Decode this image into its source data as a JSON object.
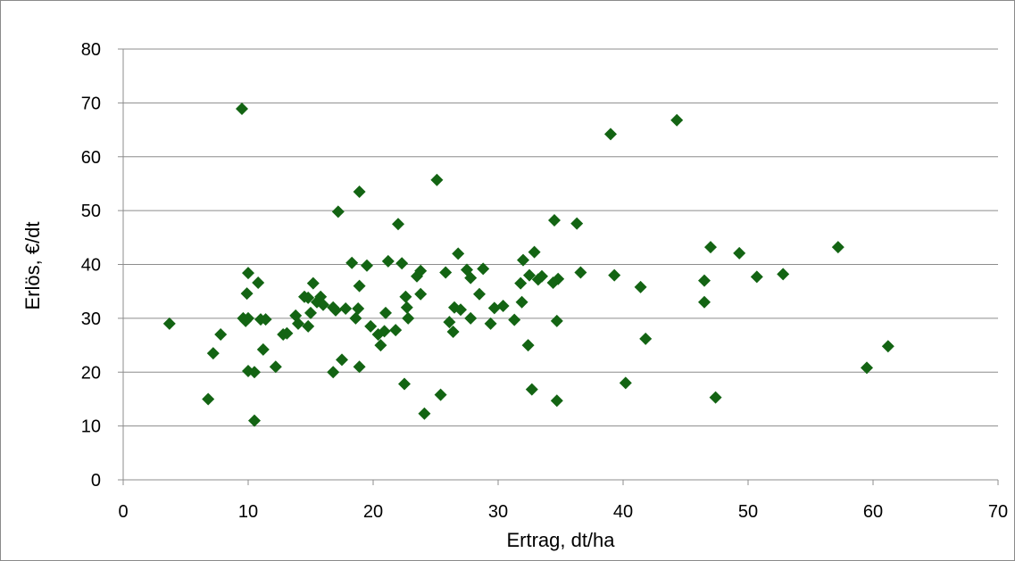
{
  "chart_data": {
    "type": "scatter",
    "title": "",
    "xlabel": "Ertrag, dt/ha",
    "ylabel": "Erlös, €/dt",
    "xlim": [
      0,
      70
    ],
    "ylim": [
      0,
      80
    ],
    "xticks": [
      "0",
      "10",
      "20",
      "30",
      "40",
      "50",
      "60",
      "70"
    ],
    "yticks": [
      "0",
      "10",
      "20",
      "30",
      "40",
      "50",
      "60",
      "70",
      "80"
    ],
    "grid": "horizontal",
    "legend": "none",
    "marker": "diamond",
    "colors": {
      "marker": "#136413",
      "grid": "#8c8c8c",
      "axis": "#8c8c8c",
      "border": "#8a8a8a"
    },
    "points": [
      [
        3.7,
        29
      ],
      [
        6.8,
        15
      ],
      [
        7.2,
        23.5
      ],
      [
        7.8,
        27
      ],
      [
        9.5,
        68.9
      ],
      [
        9.6,
        30
      ],
      [
        9.8,
        29.5
      ],
      [
        9.9,
        34.6
      ],
      [
        10.0,
        30
      ],
      [
        10.0,
        38.4
      ],
      [
        10.0,
        20.2
      ],
      [
        10.5,
        20
      ],
      [
        10.5,
        11
      ],
      [
        10.8,
        36.6
      ],
      [
        11.0,
        29.8
      ],
      [
        11.2,
        24.2
      ],
      [
        11.4,
        29.8
      ],
      [
        12.2,
        21
      ],
      [
        12.8,
        27
      ],
      [
        13.1,
        27.2
      ],
      [
        13.8,
        30.5
      ],
      [
        14.0,
        29
      ],
      [
        14.5,
        34
      ],
      [
        14.8,
        33.8
      ],
      [
        14.8,
        28.5
      ],
      [
        15.0,
        31
      ],
      [
        15.2,
        36.5
      ],
      [
        15.5,
        33
      ],
      [
        15.8,
        34
      ],
      [
        16.0,
        32.5
      ],
      [
        16.8,
        32
      ],
      [
        16.8,
        20
      ],
      [
        17.0,
        31.5
      ],
      [
        17.2,
        49.8
      ],
      [
        17.5,
        22.3
      ],
      [
        17.8,
        31.8
      ],
      [
        18.3,
        40.3
      ],
      [
        18.6,
        30
      ],
      [
        18.8,
        31.8
      ],
      [
        18.9,
        53.5
      ],
      [
        18.9,
        36
      ],
      [
        18.9,
        21
      ],
      [
        19.5,
        39.8
      ],
      [
        19.8,
        28.5
      ],
      [
        20.4,
        27
      ],
      [
        20.6,
        25
      ],
      [
        20.9,
        27.6
      ],
      [
        21.0,
        31
      ],
      [
        21.2,
        40.6
      ],
      [
        21.8,
        27.8
      ],
      [
        22.0,
        47.5
      ],
      [
        22.3,
        40.2
      ],
      [
        22.5,
        17.8
      ],
      [
        22.6,
        34
      ],
      [
        22.7,
        32
      ],
      [
        22.8,
        30
      ],
      [
        23.5,
        37.8
      ],
      [
        23.8,
        38.8
      ],
      [
        23.8,
        34.5
      ],
      [
        24.1,
        12.3
      ],
      [
        25.1,
        55.7
      ],
      [
        25.4,
        15.8
      ],
      [
        25.8,
        38.5
      ],
      [
        26.1,
        29.3
      ],
      [
        26.4,
        27.5
      ],
      [
        26.5,
        32
      ],
      [
        26.8,
        42
      ],
      [
        27.0,
        31.6
      ],
      [
        27.5,
        39
      ],
      [
        27.8,
        37.5
      ],
      [
        27.8,
        30
      ],
      [
        28.5,
        34.5
      ],
      [
        28.8,
        39.2
      ],
      [
        29.4,
        29
      ],
      [
        29.7,
        31.9
      ],
      [
        30.4,
        32.3
      ],
      [
        31.3,
        29.7
      ],
      [
        31.8,
        36.5
      ],
      [
        31.9,
        33
      ],
      [
        32.0,
        40.8
      ],
      [
        32.4,
        25
      ],
      [
        32.5,
        38
      ],
      [
        32.7,
        16.8
      ],
      [
        32.9,
        42.3
      ],
      [
        33.2,
        37.2
      ],
      [
        33.5,
        37.8
      ],
      [
        34.4,
        36.6
      ],
      [
        34.5,
        48.2
      ],
      [
        34.7,
        29.5
      ],
      [
        34.7,
        14.7
      ],
      [
        34.8,
        37.3
      ],
      [
        36.3,
        47.6
      ],
      [
        36.6,
        38.5
      ],
      [
        39.0,
        64.2
      ],
      [
        39.3,
        38
      ],
      [
        40.2,
        18
      ],
      [
        41.4,
        35.8
      ],
      [
        41.8,
        26.2
      ],
      [
        44.3,
        66.8
      ],
      [
        46.5,
        37
      ],
      [
        46.5,
        33
      ],
      [
        47.0,
        43.2
      ],
      [
        47.4,
        15.3
      ],
      [
        49.3,
        42.1
      ],
      [
        50.7,
        37.7
      ],
      [
        52.8,
        38.2
      ],
      [
        57.2,
        43.2
      ],
      [
        59.5,
        20.8
      ],
      [
        61.2,
        24.8
      ]
    ]
  }
}
